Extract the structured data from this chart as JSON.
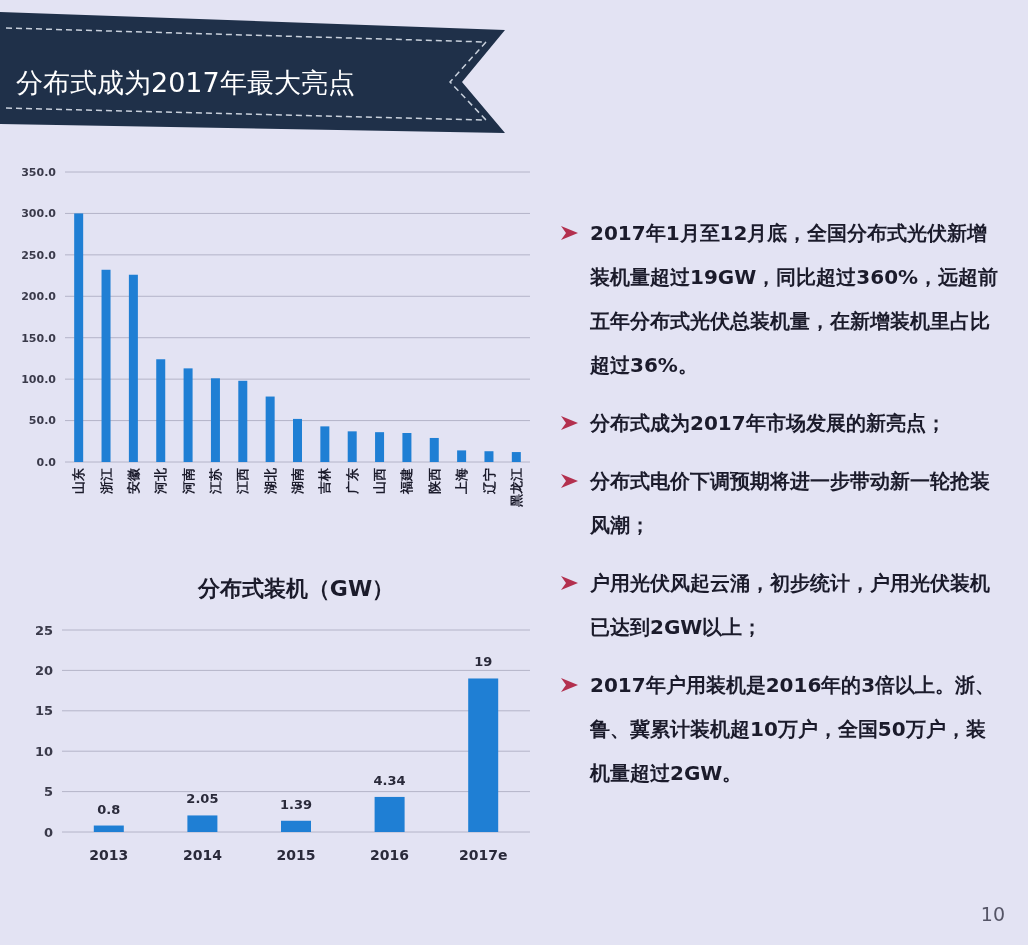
{
  "chart_data": [
    {
      "type": "bar",
      "title": "分布式成为2017年最大亮点",
      "categories": [
        "山东",
        "浙江",
        "安徽",
        "河北",
        "河南",
        "江苏",
        "江西",
        "湖北",
        "湖南",
        "吉林",
        "广东",
        "山西",
        "福建",
        "陕西",
        "上海",
        "辽宁",
        "黑龙江"
      ],
      "values": [
        300,
        232,
        226,
        124,
        113,
        101,
        98,
        79,
        52,
        43,
        37,
        36,
        35,
        29,
        14,
        13,
        12
      ],
      "color": "#1f7fd4",
      "ylim": [
        0,
        350
      ],
      "yticks": [
        {
          "value": 0,
          "label": "0.0"
        },
        {
          "value": 50,
          "label": "50.0"
        },
        {
          "value": 100,
          "label": "100.0"
        },
        {
          "value": 150,
          "label": "150.0"
        },
        {
          "value": 200,
          "label": "200.0"
        },
        {
          "value": 250,
          "label": "250.0"
        },
        {
          "value": 300,
          "label": "300.0"
        },
        {
          "value": 350,
          "label": "350.0"
        }
      ],
      "grid": "y"
    },
    {
      "type": "other",
      "annotations": [
        "2017年1月至12月底，全国分布式光伏新增装机量超过19GW，同比超过360%，远超前五年分布式光伏总装机量，在新增装机里占比超过36%。",
        "分布式成为2017年市场发展的新亮点；",
        "分布式电价下调预期将进一步带动新一轮抢装风潮；",
        "户用光伏风起云涌，初步统计，户用光伏装机已达到2GW以上；",
        "2017年户用装机是2016年的3倍以上。浙、鲁、冀累计装机超10万户，全国50万户，装机量超过2GW。",
        "10"
      ]
    },
    {
      "type": "bar",
      "title": "分布式装机（GW）",
      "categories": [
        "2013",
        "2014",
        "2015",
        "2016",
        "2017e"
      ],
      "values": [
        0.8,
        2.05,
        1.39,
        4.34,
        19
      ],
      "color": "#1f7fd4",
      "ylim": [
        0,
        25
      ],
      "yticks": [
        0,
        5,
        10,
        15,
        20,
        25
      ],
      "grid": "y",
      "data_labels": true
    }
  ]
}
